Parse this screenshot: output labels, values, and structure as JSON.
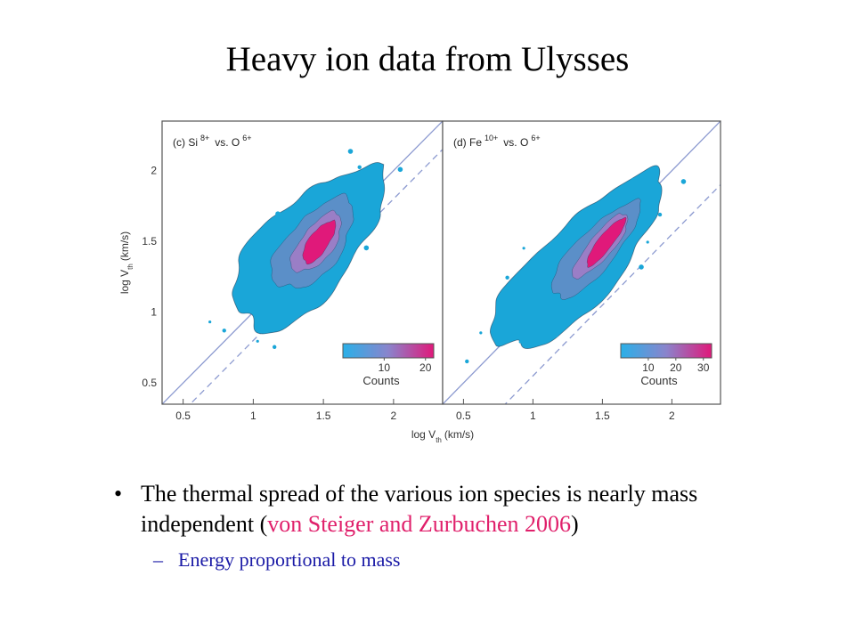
{
  "slide": {
    "title": "Heavy ion data from Ulysses",
    "bullet_text": "The thermal spread of the various ion species is nearly mass independent (",
    "bullet_citation": "von Steiger and Zurbuchen 2006",
    "bullet_close": ")",
    "sub_bullet": "Energy proportional to mass",
    "colors": {
      "citation": "#e0206b",
      "sub_bullet": "#1a1aa6"
    }
  },
  "chart_data": {
    "type": "heatmap",
    "ylabel": "log V th (km/s)",
    "ylabel_main": "log V",
    "ylabel_sub": "th",
    "ylabel_unit": "(km/s)",
    "xlabel": "log V th (km/s)",
    "xlabel_main": "log V",
    "xlabel_sub": "th",
    "xlabel_unit": "(km/s)",
    "y_ticks": [
      0.5,
      1,
      1.5,
      2
    ],
    "y_tick_labels": [
      "0.5",
      "1",
      "1.5",
      "2"
    ],
    "ylim": [
      0.35,
      2.35
    ],
    "colors": {
      "low": "#1aa6d8",
      "mid": "#8080c8",
      "high": "#e0197a",
      "reference_line": "#8c9ad0"
    },
    "panels": [
      {
        "label": "(c) Si",
        "label_sup": "8+",
        "label_vs": "vs. O",
        "label_vs_sup": "6+",
        "x_ticks": [
          0.5,
          1,
          1.5,
          2
        ],
        "x_tick_labels": [
          "0.5",
          "1",
          "1.5",
          "2"
        ],
        "xlim": [
          0.35,
          2.35
        ],
        "colorbar_title": "Counts",
        "colorbar_ticks": [
          10,
          20
        ],
        "colorbar_tick_labels": [
          "10",
          "20"
        ],
        "colorbar_max": 22
      },
      {
        "label": "(d) Fe",
        "label_sup": "10+",
        "label_vs": "vs. O",
        "label_vs_sup": "6+",
        "x_ticks": [
          0.5,
          1,
          1.5,
          2
        ],
        "x_tick_labels": [
          "0.5",
          "1",
          "1.5",
          "2"
        ],
        "xlim": [
          0.35,
          2.35
        ],
        "colorbar_title": "Counts",
        "colorbar_ticks": [
          10,
          20,
          30
        ],
        "colorbar_tick_labels": [
          "10",
          "20",
          "30"
        ],
        "colorbar_max": 33
      }
    ]
  }
}
